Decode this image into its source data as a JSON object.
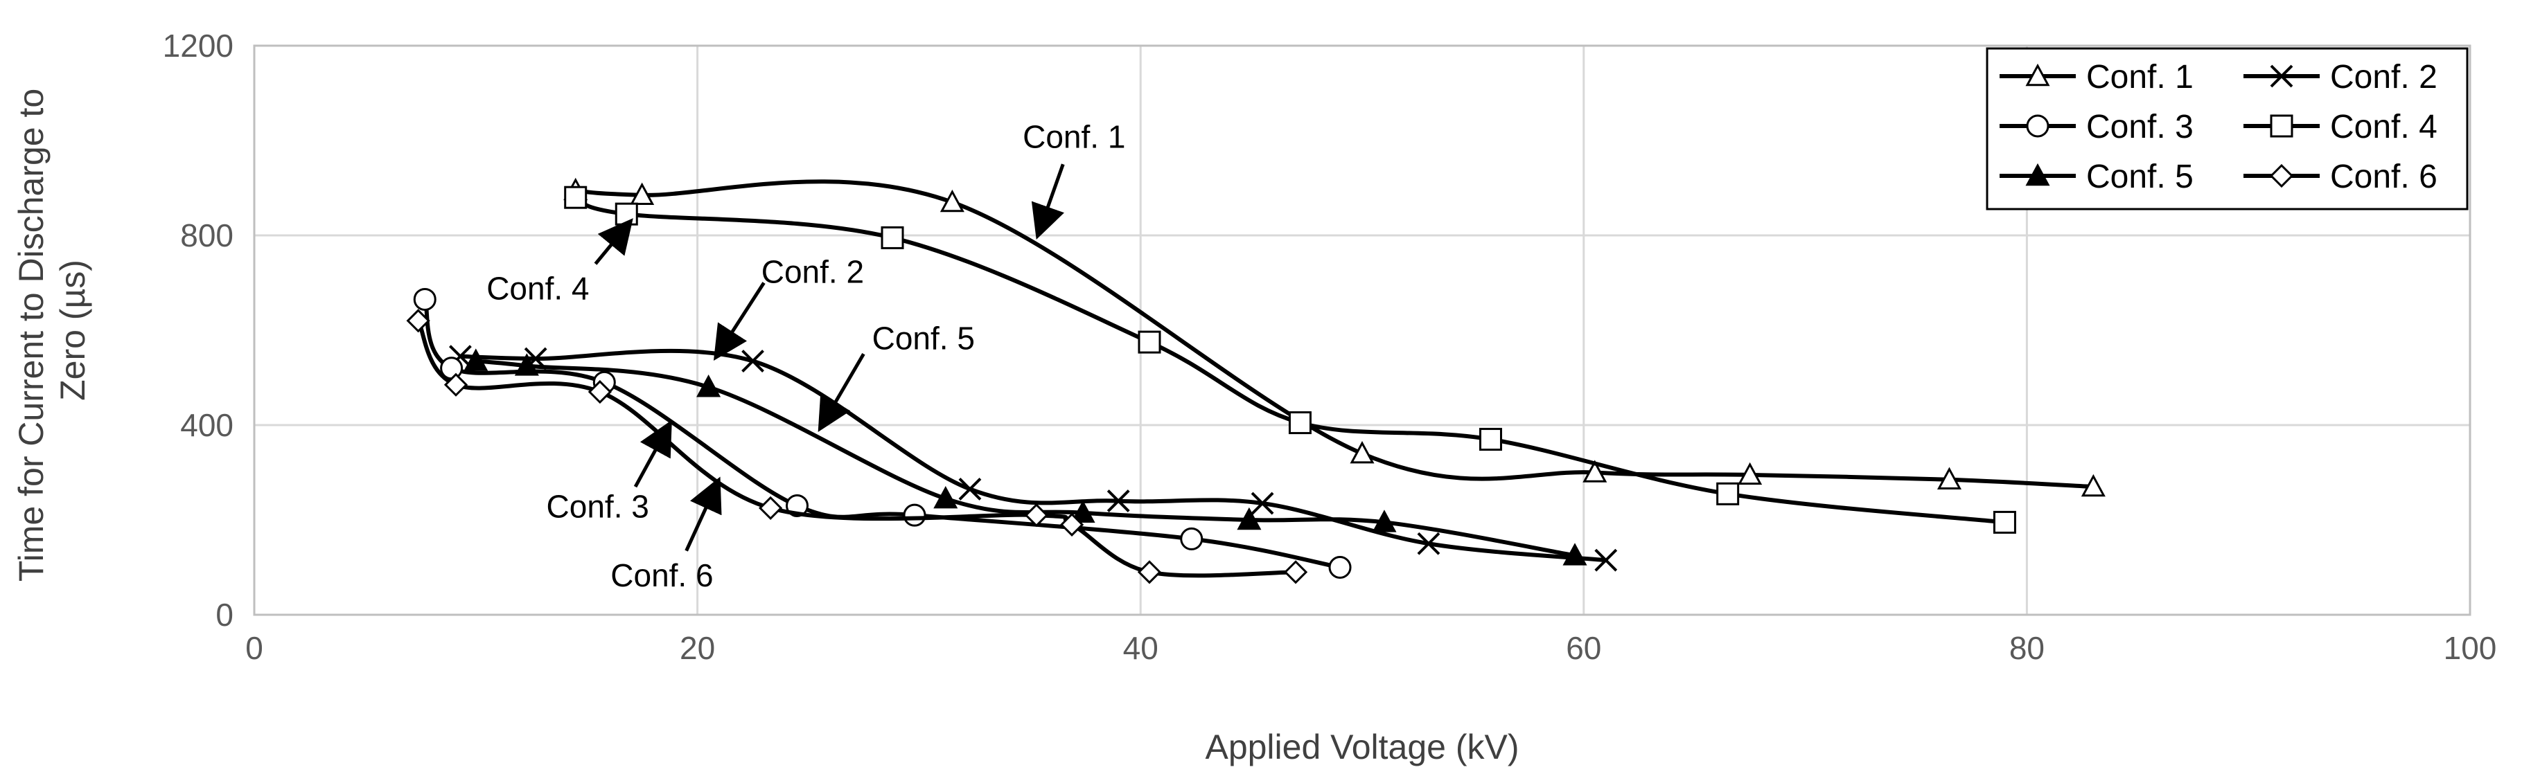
{
  "chart_data": {
    "type": "line",
    "title": "",
    "xlabel": "Applied Voltage (kV)",
    "ylabel": "Time  for Current  to Discharge to Zero (µs)",
    "ylabel_lines": [
      "Time  for Current  to Discharge to",
      "Zero (µs)"
    ],
    "xlim": [
      0,
      100
    ],
    "ylim": [
      0,
      1200
    ],
    "xticks": [
      0,
      20,
      40,
      60,
      80,
      100
    ],
    "yticks": [
      0,
      400,
      800,
      1200
    ],
    "grid": true,
    "legend_position": "top-right",
    "series": [
      {
        "name": "Conf. 1",
        "marker": "triangle-open",
        "x": [
          14.5,
          17.5,
          31.5,
          50,
          60.5,
          67.5,
          76.5,
          83
        ],
        "y": [
          895,
          885,
          870,
          340,
          300,
          295,
          285,
          270
        ]
      },
      {
        "name": "Conf. 2",
        "marker": "x",
        "x": [
          9.3,
          12.7,
          22.5,
          32.3,
          39,
          45.5,
          53,
          61
        ],
        "y": [
          545,
          540,
          535,
          265,
          240,
          235,
          150,
          115
        ]
      },
      {
        "name": "Conf. 3",
        "marker": "circle-open",
        "x": [
          7.7,
          8.9,
          15.8,
          24.5,
          29.8,
          42.3,
          49
        ],
        "y": [
          665,
          520,
          490,
          230,
          210,
          160,
          100
        ]
      },
      {
        "name": "Conf. 4",
        "marker": "square-open",
        "x": [
          14.5,
          16.8,
          28.8,
          40.4,
          47.2,
          55.8,
          66.5,
          79
        ],
        "y": [
          880,
          845,
          795,
          575,
          405,
          370,
          255,
          195
        ]
      },
      {
        "name": "Conf. 5",
        "marker": "triangle-filled",
        "x": [
          10,
          12.3,
          20.5,
          31.2,
          37.4,
          44.9,
          51,
          59.6
        ],
        "y": [
          535,
          525,
          480,
          245,
          215,
          200,
          195,
          125
        ]
      },
      {
        "name": "Conf. 6",
        "marker": "diamond-open",
        "x": [
          7.4,
          9.1,
          15.6,
          23.3,
          35.3,
          36.9,
          40.4,
          47
        ],
        "y": [
          620,
          485,
          470,
          225,
          210,
          190,
          90,
          90
        ]
      }
    ],
    "annotations": [
      {
        "text": "Conf. 1",
        "text_x": 37,
        "text_y": 985,
        "arrow_from": [
          36.5,
          950
        ],
        "arrow_to": [
          35.4,
          805
        ]
      },
      {
        "text": "Conf. 4",
        "text_x": 12.8,
        "text_y": 665,
        "arrow_from": [
          15.4,
          740
        ],
        "arrow_to": [
          16.9,
          825
        ]
      },
      {
        "text": "Conf. 2",
        "text_x": 25.2,
        "text_y": 700,
        "arrow_from": [
          23,
          700
        ],
        "arrow_to": [
          20.9,
          548
        ]
      },
      {
        "text": "Conf. 5",
        "text_x": 30.2,
        "text_y": 560,
        "arrow_from": [
          27.5,
          550
        ],
        "arrow_to": [
          25.6,
          398
        ]
      },
      {
        "text": "Conf. 3",
        "text_x": 15.5,
        "text_y": 205,
        "arrow_from": [
          17.2,
          270
        ],
        "arrow_to": [
          18.7,
          398
        ]
      },
      {
        "text": "Conf. 6",
        "text_x": 18.4,
        "text_y": 60,
        "arrow_from": [
          19.5,
          135
        ],
        "arrow_to": [
          20.9,
          278
        ]
      }
    ]
  }
}
